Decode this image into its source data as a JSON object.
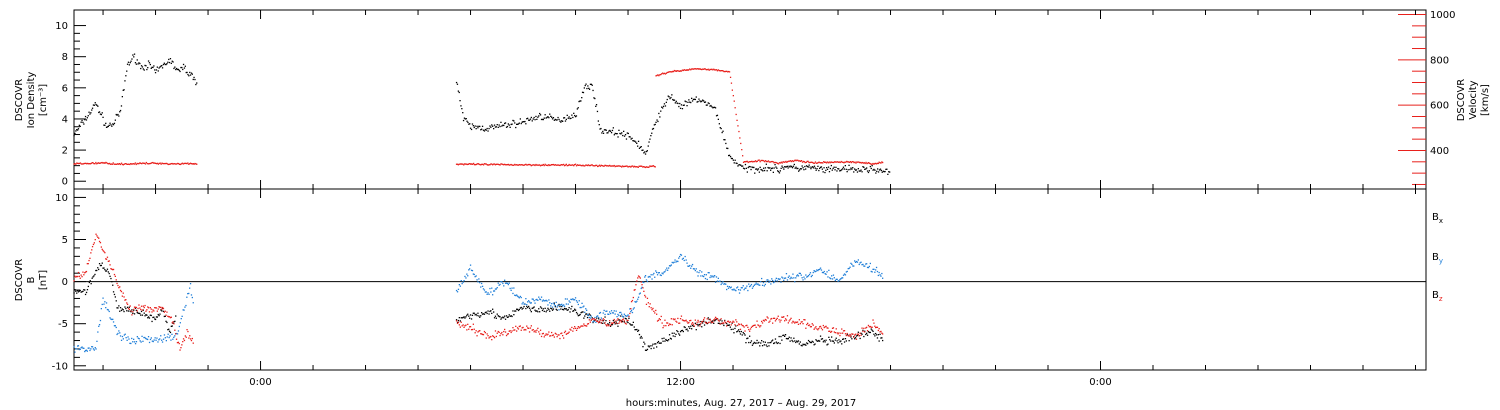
{
  "colors": {
    "black": "#000000",
    "red": "#e8201c",
    "blue": "#1e7ed8",
    "axis": "#000000"
  },
  "xaxis": {
    "label": "hours:minutes, Aug. 27, 2017 – Aug. 29, 2017",
    "ticks": [
      {
        "t": 0,
        "label": "0:00"
      },
      {
        "t": 12,
        "label": "12:00"
      },
      {
        "t": 24,
        "label": "0:00"
      }
    ],
    "range_hours": [
      -5.33,
      33.3
    ]
  },
  "chart_data": [
    {
      "type": "scatter",
      "panel": "top",
      "ylabel_left": [
        "DSCOVR",
        "Ion Density",
        "[cm⁻³]"
      ],
      "ylabel_right": [
        "DSCOVR",
        "Velocity",
        "[km/s]"
      ],
      "ylim_left": [
        -0.5,
        11
      ],
      "yticks_left": [
        0,
        2,
        4,
        6,
        8,
        10
      ],
      "ylim_right": [
        230,
        1020
      ],
      "yticks_right": [
        400,
        600,
        800,
        1000
      ],
      "series": [
        {
          "axis": "left",
          "color": "black",
          "segments": [
            {
              "x": [
                -5.33,
                -5.0,
                -4.7,
                -4.4,
                -4.2,
                -4.0,
                -3.8,
                -3.6,
                -3.4,
                -3.2,
                -3.0,
                -2.8,
                -2.6,
                -2.4,
                -2.3,
                -2.2,
                -2.0,
                -1.9,
                -1.8
              ],
              "y": [
                3.0,
                4.0,
                5.0,
                3.5,
                3.7,
                4.5,
                7.5,
                8.0,
                7.3,
                7.5,
                7.0,
                7.4,
                7.8,
                7.2,
                7.0,
                7.4,
                6.8,
                6.6,
                6.4
              ]
            },
            {
              "x": [
                5.6,
                5.8,
                6.0,
                6.5,
                7.0,
                7.5,
                8.0,
                8.5,
                9.0,
                9.3,
                9.5,
                9.7,
                10.0,
                10.4,
                10.8,
                11.0,
                11.3,
                11.7,
                12.0,
                12.5,
                13.0,
                13.4,
                13.8,
                14.2,
                14.5,
                14.8,
                15.0,
                15.3,
                15.6,
                15.9,
                16.2,
                16.6,
                17.0,
                17.5,
                18.0
              ],
              "y": [
                6.5,
                4.0,
                3.5,
                3.4,
                3.6,
                3.8,
                4.2,
                3.9,
                4.3,
                6.2,
                6.0,
                3.3,
                3.2,
                3.0,
                2.4,
                1.7,
                3.9,
                5.5,
                4.8,
                5.3,
                4.6,
                1.6,
                0.8,
                0.8,
                0.9,
                0.7,
                1.0,
                0.8,
                0.9,
                0.8,
                0.7,
                0.8,
                0.7,
                0.8,
                0.5
              ]
            }
          ]
        },
        {
          "axis": "right",
          "color": "red",
          "segments": [
            {
              "x": [
                -5.33,
                -4.5,
                -4.0,
                -3.5,
                -3.0,
                -2.5,
                -2.0,
                -1.8
              ],
              "y": [
                341,
                345,
                340,
                342,
                344,
                341,
                343,
                340
              ]
            },
            {
              "x": [
                5.6,
                6.5,
                7.5,
                8.5,
                9.5,
                10.5,
                11.0,
                11.3
              ],
              "y": [
                340,
                338,
                337,
                336,
                334,
                330,
                328,
                330
              ]
            },
            {
              "x": [
                11.3,
                11.7,
                12.0,
                12.5,
                13.0,
                13.4,
                13.8,
                14.3,
                14.8,
                15.3,
                15.8,
                16.3,
                16.8,
                17.3,
                17.6,
                17.8
              ],
              "y": [
                730,
                748,
                752,
                762,
                755,
                748,
                350,
                355,
                345,
                356,
                345,
                348,
                350,
                345,
                340,
                350
              ]
            }
          ]
        }
      ]
    },
    {
      "type": "scatter",
      "panel": "bottom",
      "ylabel_left": [
        "DSCOVR",
        "B",
        "[nT]"
      ],
      "ylim": [
        -10.5,
        11
      ],
      "yticks": [
        -10,
        -5,
        0,
        5,
        10
      ],
      "zero_line": true,
      "legend": [
        {
          "label": "B",
          "sub": "x",
          "color": "black"
        },
        {
          "label": "B",
          "sub": "y",
          "color": "blue"
        },
        {
          "label": "B",
          "sub": "z",
          "color": "red"
        }
      ],
      "series": [
        {
          "name": "Bx",
          "color": "black",
          "segments": [
            {
              "x": [
                -5.33,
                -5.0,
                -4.6,
                -4.3,
                -4.1,
                -3.9,
                -3.7,
                -3.5,
                -3.3,
                -3.0,
                -2.8,
                -2.6,
                -2.4
              ],
              "y": [
                -1.0,
                -1.2,
                2.0,
                1.0,
                -3.0,
                -3.5,
                -3.2,
                -3.5,
                -4.0,
                -4.5,
                -3.5,
                -6.0,
                -4.0
              ]
            },
            {
              "x": [
                5.6,
                6.0,
                6.5,
                7.0,
                7.5,
                8.0,
                8.5,
                9.0,
                9.5,
                10.0,
                10.5,
                10.8,
                11.0,
                11.5,
                12.0,
                12.5,
                13.0,
                13.5,
                14.0,
                14.5,
                15.0,
                15.5,
                16.0,
                16.5,
                17.0,
                17.5,
                17.8
              ],
              "y": [
                -4.5,
                -4.0,
                -3.5,
                -4.5,
                -3.0,
                -3.5,
                -3.0,
                -3.5,
                -4.5,
                -5.0,
                -4.5,
                -6.0,
                -8.0,
                -7.0,
                -6.0,
                -5.0,
                -4.5,
                -5.5,
                -7.0,
                -7.5,
                -6.5,
                -7.5,
                -7.0,
                -7.2,
                -6.5,
                -6.0,
                -7.0
              ]
            }
          ]
        },
        {
          "name": "By",
          "color": "blue",
          "segments": [
            {
              "x": [
                -5.33,
                -5.0,
                -4.7,
                -4.5,
                -4.3,
                -4.0,
                -3.6,
                -3.2,
                -2.8,
                -2.4,
                -2.0,
                -1.9
              ],
              "y": [
                -8.0,
                -8.0,
                -7.8,
                -2.0,
                -4.0,
                -6.5,
                -7.0,
                -6.8,
                -6.8,
                -6.5,
                -0.5,
                -3.5
              ]
            },
            {
              "x": [
                5.6,
                6.0,
                6.5,
                7.0,
                7.5,
                8.0,
                8.5,
                9.0,
                9.5,
                10.0,
                10.5,
                10.8,
                11.0,
                11.5,
                12.0,
                12.5,
                13.0,
                13.5,
                14.0,
                14.5,
                15.0,
                15.5,
                16.0,
                16.5,
                17.0,
                17.5,
                17.8
              ],
              "y": [
                -1.0,
                1.5,
                -1.5,
                0.0,
                -2.5,
                -2.0,
                -3.0,
                -2.0,
                -4.5,
                -3.5,
                -4.0,
                -2.0,
                0.5,
                1.0,
                3.0,
                1.0,
                0.5,
                -1.0,
                -0.5,
                0.0,
                0.5,
                0.5,
                1.5,
                0.0,
                2.5,
                1.5,
                0.5
              ]
            }
          ]
        },
        {
          "name": "Bz",
          "color": "red",
          "segments": [
            {
              "x": [
                -5.33,
                -5.0,
                -4.7,
                -4.4,
                -4.2,
                -4.0,
                -3.7,
                -3.4,
                -3.1,
                -2.8,
                -2.5,
                -2.3,
                -2.1,
                -1.9
              ],
              "y": [
                0.5,
                1.0,
                5.5,
                3.0,
                1.0,
                -1.0,
                -3.5,
                -3.0,
                -3.5,
                -3.2,
                -5.0,
                -8.0,
                -6.0,
                -7.5
              ]
            },
            {
              "x": [
                5.6,
                6.0,
                6.5,
                7.0,
                7.5,
                8.0,
                8.5,
                9.0,
                9.5,
                10.0,
                10.5,
                10.8,
                11.0,
                11.5,
                12.0,
                12.5,
                13.0,
                13.5,
                14.0,
                14.5,
                15.0,
                15.5,
                16.0,
                16.5,
                17.0,
                17.5,
                17.8
              ],
              "y": [
                -5.0,
                -5.5,
                -6.5,
                -6.0,
                -5.5,
                -6.0,
                -6.5,
                -5.5,
                -4.5,
                -5.0,
                -4.5,
                1.0,
                -2.0,
                -5.0,
                -4.5,
                -5.0,
                -4.5,
                -5.0,
                -5.5,
                -4.5,
                -4.5,
                -5.0,
                -5.5,
                -6.0,
                -6.5,
                -5.0,
                -6.0
              ]
            }
          ]
        }
      ]
    }
  ]
}
